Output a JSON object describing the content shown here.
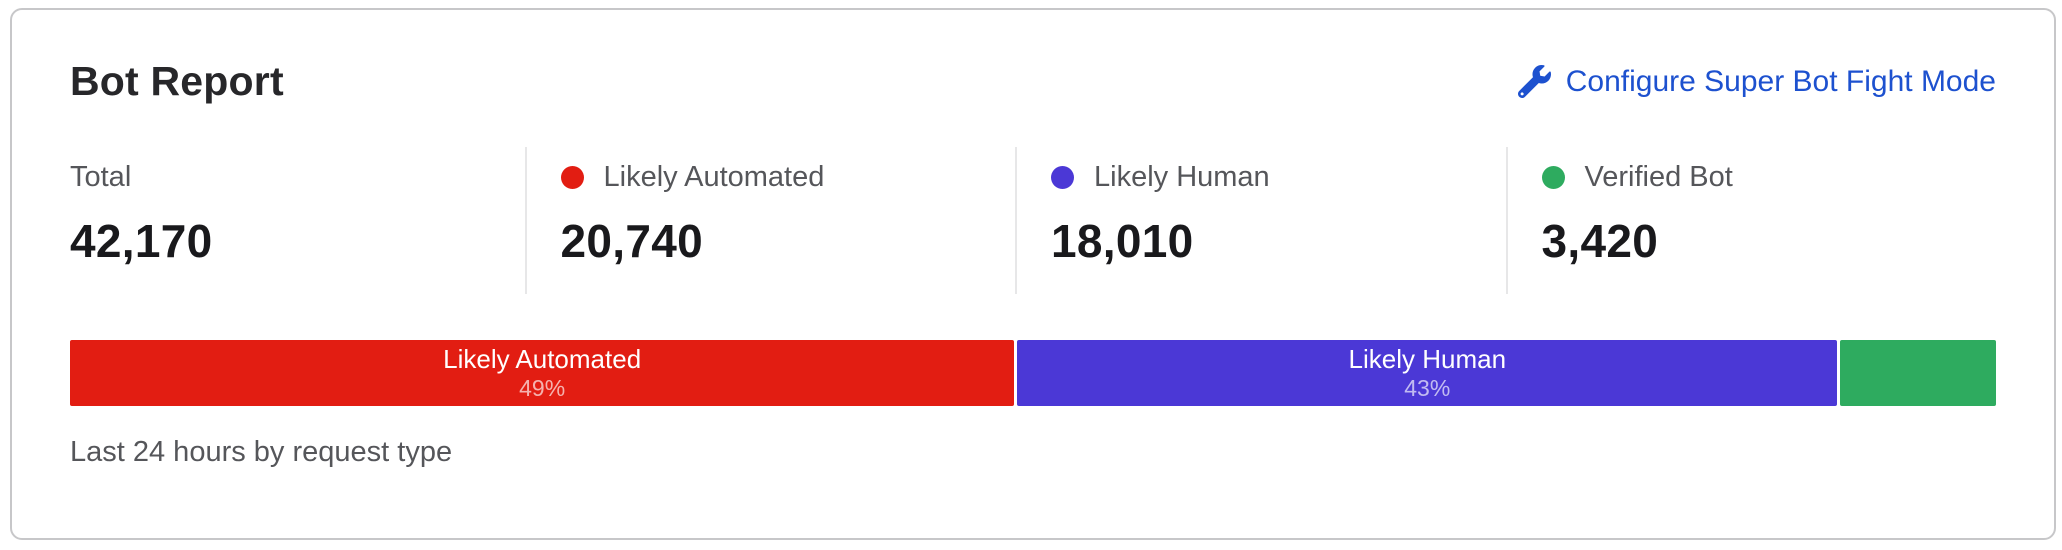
{
  "header": {
    "title": "Bot Report",
    "action_label": "Configure Super Bot Fight Mode"
  },
  "stats": {
    "items": [
      {
        "label": "Total",
        "value": "42,170"
      },
      {
        "label": "Likely Automated",
        "value": "20,740",
        "dot_color": "#e21d12"
      },
      {
        "label": "Likely Human",
        "value": "18,010",
        "dot_color": "#4b38d6"
      },
      {
        "label": "Verified Bot",
        "value": "3,420",
        "dot_color": "#2eab5f"
      }
    ]
  },
  "footer": {
    "caption": "Last 24 hours by request type"
  },
  "colors": {
    "link_blue": "#1d51cf",
    "card_border": "#c7c7c9",
    "divider": "#e7e7e8",
    "title_text": "#27272a",
    "value_text": "#19191c",
    "muted_text": "#55565a"
  },
  "chart_data": {
    "type": "bar",
    "variant": "stacked-horizontal-distribution",
    "title": "Bot Report",
    "caption": "Last 24 hours by request type",
    "total": 42170,
    "legend_position": "none",
    "segments": [
      {
        "label": "Likely Automated",
        "value": 20740,
        "percent": 49,
        "percent_label": "49%",
        "color": "#e21d12",
        "label_visible": true
      },
      {
        "label": "Likely Human",
        "value": 18010,
        "percent": 43,
        "percent_label": "43%",
        "color": "#4b38d6",
        "label_visible": true
      },
      {
        "label": "Verified Bot",
        "value": 3420,
        "percent": 8,
        "percent_label": "8%",
        "color": "#2eab5f",
        "label_visible": false
      }
    ]
  }
}
